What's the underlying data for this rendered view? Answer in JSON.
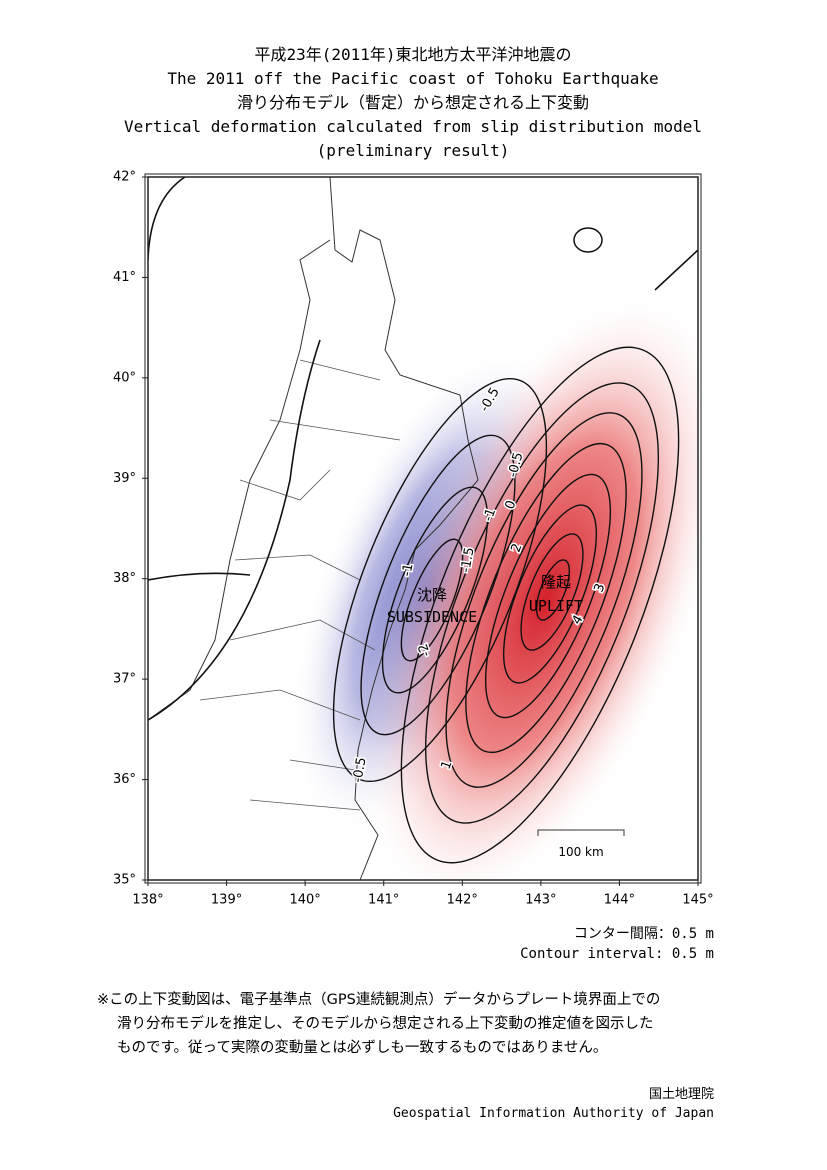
{
  "header": {
    "lines": [
      "平成23年(2011年)東北地方太平洋沖地震の",
      "The 2011 off the Pacific coast of Tohoku Earthquake",
      "滑り分布モデル（暫定）から想定される上下変動",
      "Vertical deformation calculated from slip distribution model",
      "(preliminary result)"
    ]
  },
  "map": {
    "xlim": [
      138,
      145
    ],
    "ylim": [
      35,
      42
    ],
    "xticks": [
      {
        "value": 138,
        "label": "138°"
      },
      {
        "value": 139,
        "label": "139°"
      },
      {
        "value": 140,
        "label": "140°"
      },
      {
        "value": 141,
        "label": "141°"
      },
      {
        "value": 142,
        "label": "142°"
      },
      {
        "value": 143,
        "label": "143°"
      },
      {
        "value": 144,
        "label": "144°"
      },
      {
        "value": 145,
        "label": "145°"
      }
    ],
    "yticks": [
      {
        "value": 35,
        "label": "35°"
      },
      {
        "value": 36,
        "label": "36°"
      },
      {
        "value": 37,
        "label": "37°"
      },
      {
        "value": 38,
        "label": "38°"
      },
      {
        "value": 39,
        "label": "39°"
      },
      {
        "value": 40,
        "label": "40°"
      },
      {
        "value": 41,
        "label": "41°"
      },
      {
        "value": 42,
        "label": "42°"
      }
    ],
    "contour_labels": [
      "-0.5",
      "-1",
      "0",
      "-0.5",
      "2",
      "-1.5",
      "-1",
      "-2",
      "3",
      "4",
      "1",
      "-0.5"
    ],
    "subsidence": [
      "沈降",
      "SUBSIDENCE"
    ],
    "uplift": [
      "隆起",
      "UPLIFT"
    ],
    "scale_bar": "100 km"
  },
  "contour_interval": [
    "コンター間隔：0.5 m",
    "Contour interval: 0.5 m"
  ],
  "note": [
    "※この上下変動図は、電子基準点（GPS連続観測点）データからプレート境界面上での",
    "滑り分布モデルを推定し、そのモデルから想定される上下変動の推定値を図示した",
    "ものです。従って実際の変動量とは必ずしも一致するものではありません。"
  ],
  "credit": [
    "国土地理院",
    "Geospatial Information Authority of Japan"
  ]
}
